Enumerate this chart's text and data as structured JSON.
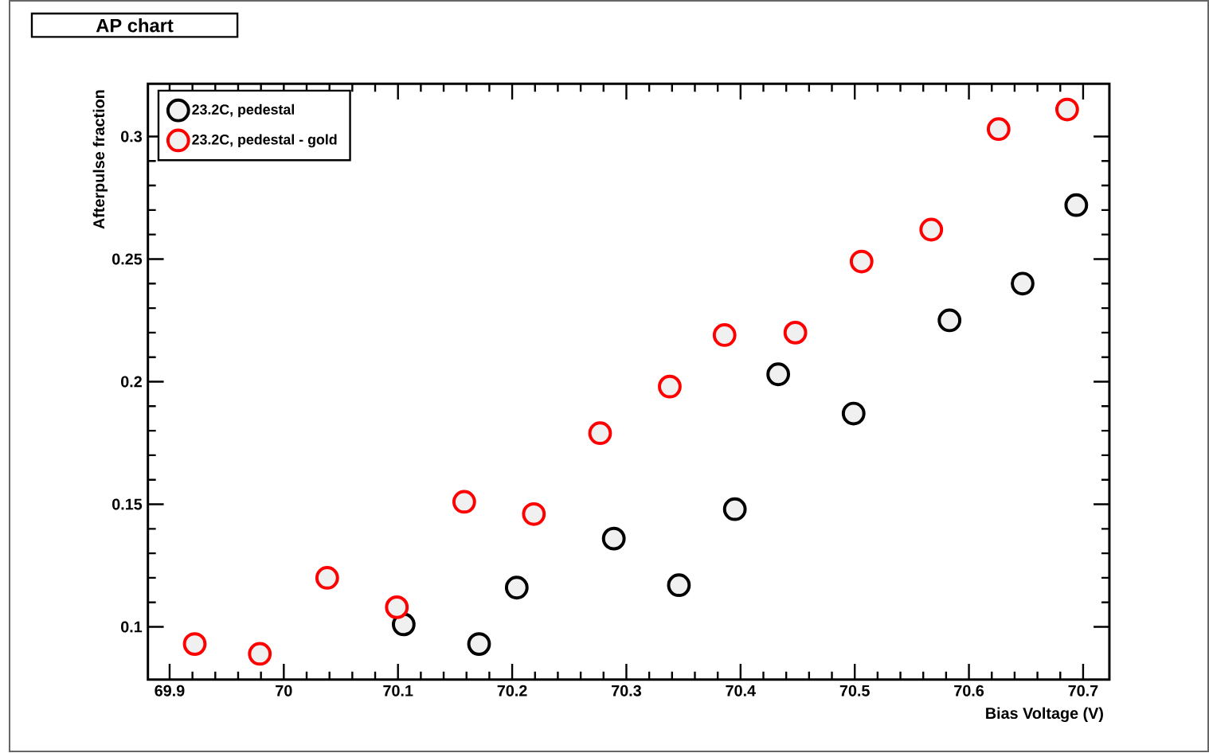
{
  "chart_data": {
    "type": "scatter",
    "title": "AP chart",
    "xlabel": "Bias Voltage (V)",
    "ylabel": "Afterpulse fraction",
    "xlim": [
      69.881,
      70.723
    ],
    "ylim": [
      0.0785,
      0.3215
    ],
    "xticks": [
      69.9,
      70,
      70.1,
      70.2,
      70.3,
      70.4,
      70.5,
      70.6,
      70.7
    ],
    "yticks": [
      0.1,
      0.15,
      0.2,
      0.25,
      0.3
    ],
    "marker": "circle",
    "legend": "top left",
    "series": [
      {
        "name": "23.2C, pedestal",
        "color": "#000000",
        "x": [
          70.105,
          70.171,
          70.204,
          70.289,
          70.346,
          70.395,
          70.433,
          70.499,
          70.583,
          70.647,
          70.694
        ],
        "values": [
          0.101,
          0.093,
          0.116,
          0.136,
          0.117,
          0.148,
          0.203,
          0.187,
          0.225,
          0.24,
          0.272
        ]
      },
      {
        "name": "23.2C, pedestal - gold",
        "color": "#ff0000",
        "x": [
          69.922,
          69.979,
          70.038,
          70.099,
          70.158,
          70.219,
          70.277,
          70.338,
          70.386,
          70.448,
          70.506,
          70.567,
          70.626,
          70.686
        ],
        "values": [
          0.093,
          0.089,
          0.12,
          0.108,
          0.151,
          0.146,
          0.179,
          0.198,
          0.219,
          0.22,
          0.249,
          0.262,
          0.303,
          0.311
        ]
      }
    ]
  }
}
